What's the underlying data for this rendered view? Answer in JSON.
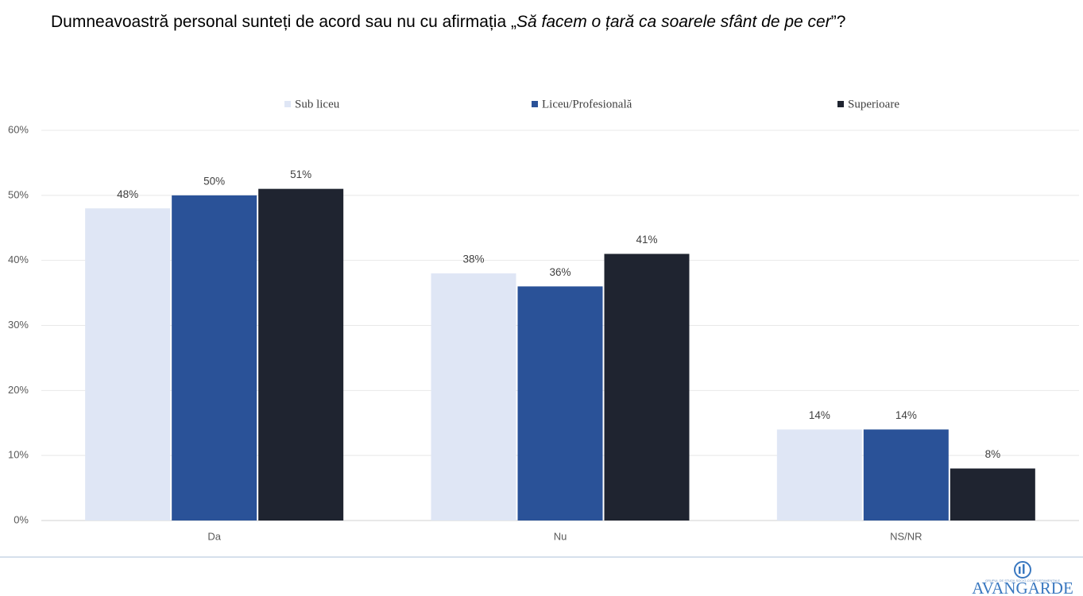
{
  "chart_data": {
    "type": "bar",
    "title": [
      "Dumneavoastră personal sunteți de acord sau nu cu afirmația „",
      "Să facem o țară ca soarele sfânt de pe cer",
      "”?"
    ],
    "categories": [
      "Da",
      "Nu",
      "NS/NR"
    ],
    "series": [
      {
        "name": "Sub liceu",
        "color": "#dfe6f5",
        "values": [
          48,
          38,
          14
        ],
        "value_labels": [
          "48%",
          "38%",
          "14%"
        ]
      },
      {
        "name": "Liceu/Profesională",
        "color": "#2a5298",
        "values": [
          50,
          36,
          14
        ],
        "value_labels": [
          "50%",
          "36%",
          "14%"
        ]
      },
      {
        "name": "Superioare",
        "color": "#1f2430",
        "values": [
          51,
          41,
          8
        ],
        "value_labels": [
          "51%",
          "41%",
          "8%"
        ]
      }
    ],
    "ylim": [
      0,
      60
    ],
    "yticks": [
      {
        "value": 0,
        "label": "0%"
      },
      {
        "value": 10,
        "label": "10%"
      },
      {
        "value": 20,
        "label": "20%"
      },
      {
        "value": 30,
        "label": "30%"
      },
      {
        "value": 40,
        "label": "40%"
      },
      {
        "value": 50,
        "label": "50%"
      },
      {
        "value": 60,
        "label": "60%"
      }
    ],
    "grid": true,
    "legend": "top"
  },
  "logo": {
    "name": "AVANGARDE",
    "tagline": "GRUPUL DE STUDII SOCIO-COMPORTAMENTALE"
  }
}
